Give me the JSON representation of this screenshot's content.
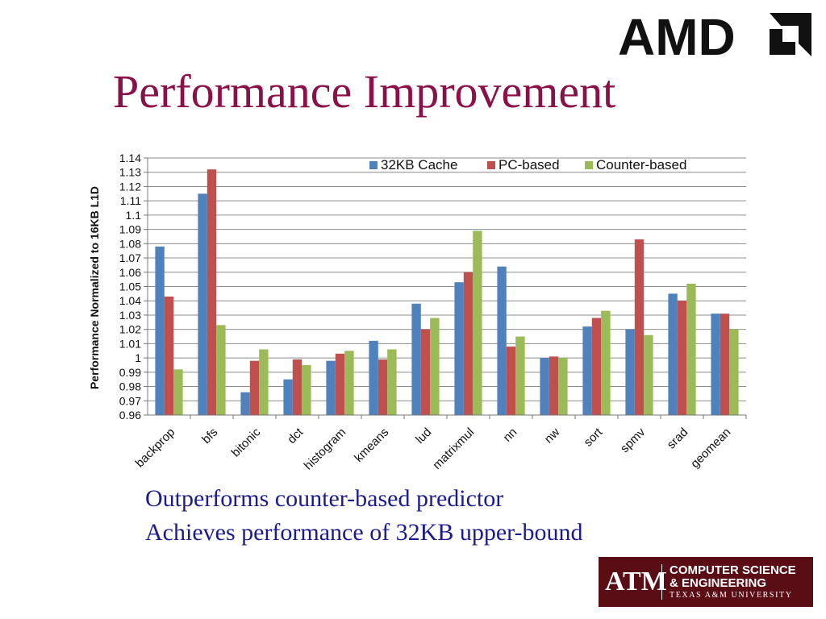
{
  "slide": {
    "title": "Performance Improvement",
    "bullets": [
      "Outperforms counter-based predictor",
      "Achieves performance of 32KB upper-bound"
    ]
  },
  "logos": {
    "amd": "AMD",
    "tamu": {
      "mark": "ATM",
      "line1": "COMPUTER SCIENCE",
      "line2": "& ENGINEERING",
      "line3": "TEXAS A&M UNIVERSITY"
    }
  },
  "chart_data": {
    "type": "bar",
    "ylabel": "Performance Normalized to  16KB L1D",
    "xlabel": "",
    "ylim": [
      0.96,
      1.14
    ],
    "ytick_step": 0.01,
    "grid": true,
    "legend_position": "top-right",
    "categories": [
      "backprop",
      "bfs",
      "bitonic",
      "dct",
      "histogram",
      "kmeans",
      "lud",
      "matrixmul",
      "nn",
      "nw",
      "sort",
      "spmv",
      "srad",
      "geomean"
    ],
    "series": [
      {
        "name": "32KB Cache",
        "color": "#4f81bd",
        "values": [
          1.078,
          1.115,
          0.976,
          0.985,
          0.998,
          1.012,
          1.038,
          1.053,
          1.064,
          1.0,
          1.022,
          1.02,
          1.045,
          1.031
        ]
      },
      {
        "name": "PC-based",
        "color": "#c0504d",
        "values": [
          1.043,
          1.132,
          0.998,
          0.999,
          1.003,
          0.999,
          1.02,
          1.06,
          1.008,
          1.001,
          1.028,
          1.083,
          1.04,
          1.031
        ]
      },
      {
        "name": "Counter-based",
        "color": "#9bbb59",
        "values": [
          0.992,
          1.023,
          1.006,
          0.995,
          1.005,
          1.006,
          1.028,
          1.089,
          1.015,
          1.0,
          1.033,
          1.016,
          1.052,
          1.02
        ]
      }
    ]
  }
}
